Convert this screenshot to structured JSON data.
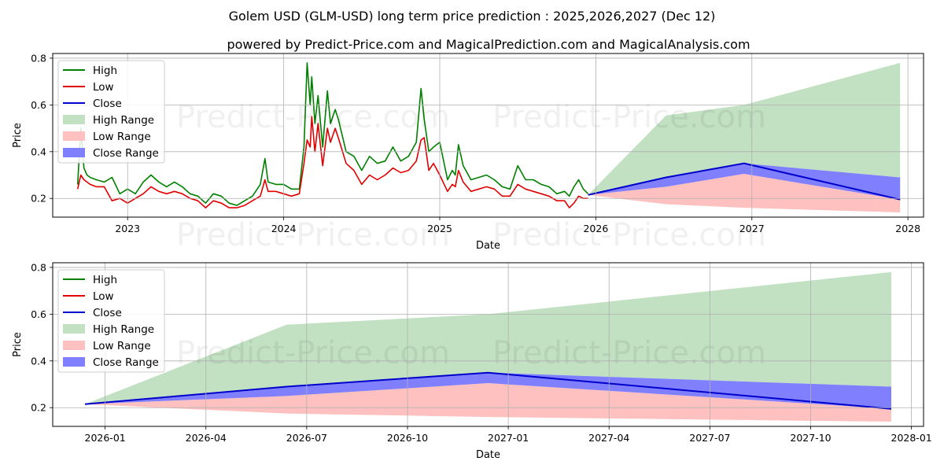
{
  "title": "Golem USD (GLM-USD) long term price prediction : 2025,2026,2027 (Dec 12)",
  "subtitle": "powered by Predict-Price.com and MagicalPrediction.com and MagicalAnalysis.com",
  "watermark": "Predict-Price.com",
  "colors": {
    "high": "#008000",
    "low": "#e00000",
    "close": "#0000cc",
    "high_range": "#c2e0c2",
    "low_range": "#ffc0c0",
    "close_range": "#8080ff",
    "grid": "#b0b0b0"
  },
  "legend": [
    "High",
    "Low",
    "Close",
    "High Range",
    "Low Range",
    "Close Range"
  ],
  "chart_data": [
    {
      "type": "line",
      "xlabel": "Date",
      "ylabel": "Price",
      "xlim": [
        2022.52,
        2028.1
      ],
      "ylim": [
        0.12,
        0.82
      ],
      "x_ticks": [
        {
          "label": "2023",
          "x": 2023.0
        },
        {
          "label": "2024",
          "x": 2024.0
        },
        {
          "label": "2025",
          "x": 2025.0
        },
        {
          "label": "2026",
          "x": 2026.0
        },
        {
          "label": "2027",
          "x": 2027.0
        },
        {
          "label": "2028",
          "x": 2028.0
        }
      ],
      "y_ticks": [
        {
          "label": "0.2",
          "y": 0.2
        },
        {
          "label": "0.4",
          "y": 0.4
        },
        {
          "label": "0.6",
          "y": 0.6
        },
        {
          "label": "0.8",
          "y": 0.8
        }
      ],
      "history": {
        "x": [
          2022.68,
          2022.7,
          2022.72,
          2022.74,
          2022.76,
          2022.8,
          2022.85,
          2022.9,
          2022.95,
          2023.0,
          2023.05,
          2023.1,
          2023.15,
          2023.2,
          2023.25,
          2023.3,
          2023.35,
          2023.4,
          2023.45,
          2023.5,
          2023.55,
          2023.6,
          2023.65,
          2023.7,
          2023.75,
          2023.8,
          2023.85,
          2023.88,
          2023.9,
          2023.95,
          2024.0,
          2024.05,
          2024.1,
          2024.13,
          2024.15,
          2024.17,
          2024.18,
          2024.2,
          2024.22,
          2024.25,
          2024.28,
          2024.3,
          2024.33,
          2024.35,
          2024.4,
          2024.45,
          2024.5,
          2024.55,
          2024.6,
          2024.65,
          2024.7,
          2024.75,
          2024.8,
          2024.85,
          2024.88,
          2024.9,
          2024.93,
          2024.96,
          2025.0,
          2025.05,
          2025.08,
          2025.1,
          2025.12,
          2025.15,
          2025.2,
          2025.25,
          2025.3,
          2025.35,
          2025.4,
          2025.45,
          2025.5,
          2025.55,
          2025.6,
          2025.65,
          2025.7,
          2025.75,
          2025.8,
          2025.83,
          2025.86,
          2025.89,
          2025.92,
          2025.95
        ],
        "high": [
          0.26,
          0.5,
          0.33,
          0.3,
          0.29,
          0.28,
          0.27,
          0.29,
          0.22,
          0.24,
          0.22,
          0.27,
          0.3,
          0.27,
          0.25,
          0.27,
          0.25,
          0.22,
          0.21,
          0.18,
          0.22,
          0.21,
          0.18,
          0.17,
          0.19,
          0.21,
          0.26,
          0.37,
          0.27,
          0.26,
          0.26,
          0.24,
          0.24,
          0.42,
          0.78,
          0.6,
          0.72,
          0.52,
          0.64,
          0.42,
          0.66,
          0.52,
          0.58,
          0.54,
          0.4,
          0.38,
          0.32,
          0.38,
          0.35,
          0.36,
          0.42,
          0.36,
          0.38,
          0.44,
          0.67,
          0.54,
          0.4,
          0.42,
          0.44,
          0.28,
          0.32,
          0.3,
          0.43,
          0.34,
          0.28,
          0.29,
          0.3,
          0.28,
          0.25,
          0.24,
          0.34,
          0.28,
          0.28,
          0.26,
          0.25,
          0.22,
          0.23,
          0.21,
          0.25,
          0.28,
          0.24,
          0.22
        ],
        "low": [
          0.24,
          0.3,
          0.28,
          0.27,
          0.26,
          0.25,
          0.25,
          0.19,
          0.2,
          0.18,
          0.2,
          0.22,
          0.25,
          0.23,
          0.22,
          0.23,
          0.22,
          0.2,
          0.19,
          0.16,
          0.19,
          0.18,
          0.16,
          0.16,
          0.17,
          0.19,
          0.21,
          0.28,
          0.23,
          0.23,
          0.22,
          0.21,
          0.22,
          0.35,
          0.45,
          0.42,
          0.55,
          0.4,
          0.52,
          0.34,
          0.5,
          0.44,
          0.5,
          0.46,
          0.35,
          0.32,
          0.26,
          0.3,
          0.28,
          0.3,
          0.33,
          0.31,
          0.32,
          0.36,
          0.45,
          0.46,
          0.32,
          0.35,
          0.3,
          0.23,
          0.26,
          0.25,
          0.32,
          0.27,
          0.23,
          0.24,
          0.25,
          0.24,
          0.21,
          0.21,
          0.26,
          0.24,
          0.23,
          0.22,
          0.21,
          0.19,
          0.19,
          0.16,
          0.18,
          0.21,
          0.2,
          0.2
        ]
      },
      "prediction": {
        "x": [
          2025.95,
          2026.45,
          2026.95,
          2027.95
        ],
        "close": [
          0.215,
          0.29,
          0.35,
          0.195
        ],
        "high_range_upper": [
          0.215,
          0.555,
          0.6,
          0.78
        ],
        "close_range_upper": [
          0.215,
          0.29,
          0.35,
          0.29
        ],
        "close_range_lower": [
          0.215,
          0.25,
          0.305,
          0.195
        ],
        "low_range_upper": [
          0.215,
          0.25,
          0.305,
          0.195
        ],
        "low_range_lower": [
          0.215,
          0.175,
          0.16,
          0.14
        ]
      }
    },
    {
      "type": "line",
      "xlabel": "Date",
      "ylabel": "Price",
      "xlim": [
        2025.87,
        2028.03
      ],
      "ylim": [
        0.12,
        0.82
      ],
      "x_ticks": [
        {
          "label": "2026-01",
          "x": 2026.0
        },
        {
          "label": "2026-04",
          "x": 2026.25
        },
        {
          "label": "2026-07",
          "x": 2026.5
        },
        {
          "label": "2026-10",
          "x": 2026.75
        },
        {
          "label": "2027-01",
          "x": 2027.0
        },
        {
          "label": "2027-04",
          "x": 2027.25
        },
        {
          "label": "2027-07",
          "x": 2027.5
        },
        {
          "label": "2027-10",
          "x": 2027.75
        },
        {
          "label": "2028-01",
          "x": 2028.0
        }
      ],
      "y_ticks": [
        {
          "label": "0.2",
          "y": 0.2
        },
        {
          "label": "0.4",
          "y": 0.4
        },
        {
          "label": "0.6",
          "y": 0.6
        },
        {
          "label": "0.8",
          "y": 0.8
        }
      ],
      "prediction": {
        "x": [
          2025.95,
          2026.45,
          2026.95,
          2027.95
        ],
        "close": [
          0.215,
          0.29,
          0.35,
          0.195
        ],
        "high_range_upper": [
          0.215,
          0.555,
          0.6,
          0.78
        ],
        "close_range_upper": [
          0.215,
          0.29,
          0.35,
          0.29
        ],
        "close_range_lower": [
          0.215,
          0.25,
          0.305,
          0.195
        ],
        "low_range_upper": [
          0.215,
          0.25,
          0.305,
          0.195
        ],
        "low_range_lower": [
          0.215,
          0.175,
          0.16,
          0.14
        ]
      }
    }
  ]
}
